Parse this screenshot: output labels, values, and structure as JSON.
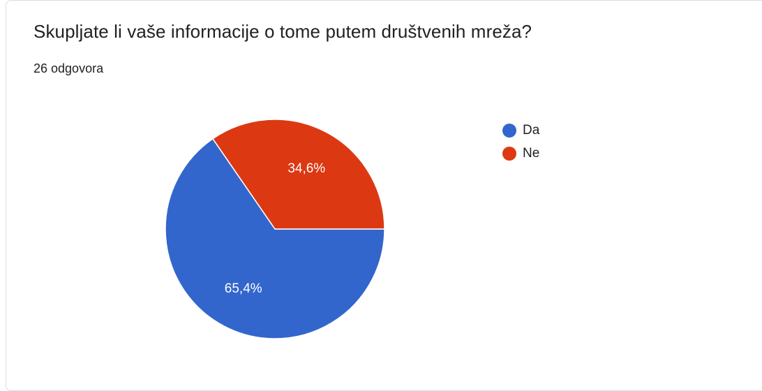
{
  "question": "Skupljate li vaše informacije o tome putem društvenih mreža?",
  "response_count": "26 odgovora",
  "chart_data": {
    "type": "pie",
    "categories": [
      "Da",
      "Ne"
    ],
    "values": [
      65.4,
      34.6
    ],
    "value_labels": [
      "65,4%",
      "34,6%"
    ],
    "colors": [
      "#3366cc",
      "#dc3912"
    ],
    "legend_position": "right"
  }
}
